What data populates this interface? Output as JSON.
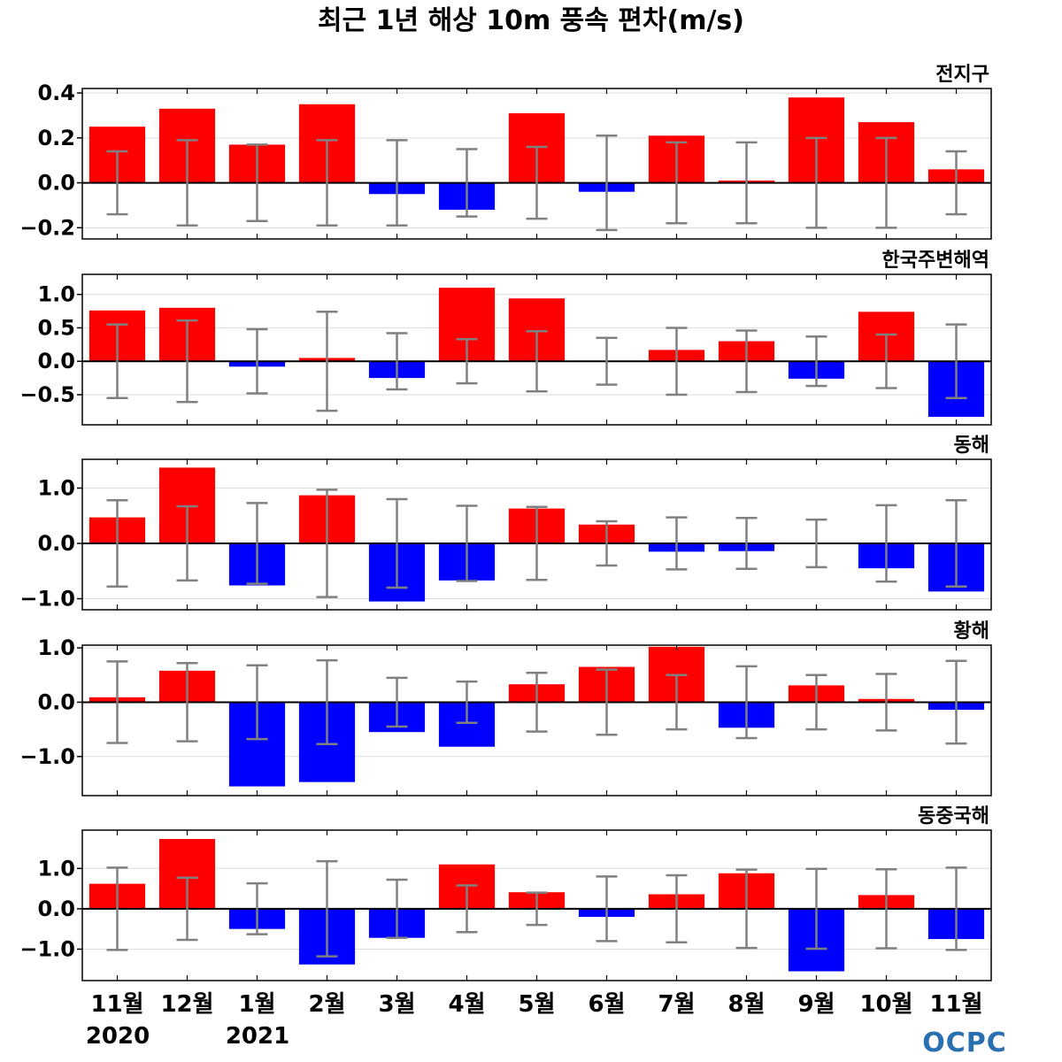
{
  "title": "최근 1년 해상 10m 풍속 편차(m/s)",
  "logo": "OCPC",
  "years": [
    "2020",
    "2021"
  ],
  "colors": {
    "positive": "#ff0000",
    "negative": "#0000ff",
    "errorbar": "#808080",
    "zero_line": "#000000",
    "grid": "#dddddd"
  },
  "chart_data": [
    {
      "type": "bar",
      "region": "전지구",
      "categories": [
        "11월",
        "12월",
        "1월",
        "2월",
        "3월",
        "4월",
        "5월",
        "6월",
        "7월",
        "8월",
        "9월",
        "10월",
        "11월"
      ],
      "values": [
        0.25,
        0.33,
        0.17,
        0.35,
        -0.05,
        -0.12,
        0.31,
        -0.04,
        0.21,
        0.01,
        0.38,
        0.27,
        0.06
      ],
      "error": [
        0.14,
        0.19,
        0.17,
        0.19,
        0.19,
        0.15,
        0.16,
        0.21,
        0.18,
        0.18,
        0.2,
        0.2,
        0.14
      ],
      "ylim": [
        -0.25,
        0.42
      ],
      "yticks": [
        -0.2,
        0.0,
        0.2,
        0.4
      ],
      "ytick_labels": [
        "−0.2",
        "0.0",
        "0.2",
        "0.4"
      ],
      "grid": true
    },
    {
      "type": "bar",
      "region": "한국주변해역",
      "categories": [
        "11월",
        "12월",
        "1월",
        "2월",
        "3월",
        "4월",
        "5월",
        "6월",
        "7월",
        "8월",
        "9월",
        "10월",
        "11월"
      ],
      "values": [
        0.76,
        0.8,
        -0.08,
        0.05,
        -0.25,
        1.1,
        0.94,
        0.0,
        0.17,
        0.3,
        -0.26,
        0.74,
        -0.83
      ],
      "error": [
        0.55,
        0.61,
        0.48,
        0.74,
        0.42,
        0.33,
        0.45,
        0.35,
        0.5,
        0.46,
        0.37,
        0.4,
        0.55
      ],
      "ylim": [
        -0.95,
        1.3
      ],
      "yticks": [
        -0.5,
        0.0,
        0.5,
        1.0
      ],
      "ytick_labels": [
        "−0.5",
        "0.0",
        "0.5",
        "1.0"
      ],
      "grid": true
    },
    {
      "type": "bar",
      "region": "동해",
      "categories": [
        "11월",
        "12월",
        "1월",
        "2월",
        "3월",
        "4월",
        "5월",
        "6월",
        "7월",
        "8월",
        "9월",
        "10월",
        "11월"
      ],
      "values": [
        0.47,
        1.37,
        -0.76,
        0.87,
        -1.05,
        -0.67,
        0.63,
        0.34,
        -0.15,
        -0.14,
        0.01,
        -0.45,
        -0.87
      ],
      "error": [
        0.78,
        0.67,
        0.73,
        0.97,
        0.8,
        0.68,
        0.66,
        0.4,
        0.47,
        0.46,
        0.43,
        0.69,
        0.78
      ],
      "ylim": [
        -1.2,
        1.52
      ],
      "yticks": [
        -1.0,
        0.0,
        1.0
      ],
      "ytick_labels": [
        "−1.0",
        "0.0",
        "1.0"
      ],
      "grid": true
    },
    {
      "type": "bar",
      "region": "황해",
      "categories": [
        "11월",
        "12월",
        "1월",
        "2월",
        "3월",
        "4월",
        "5월",
        "6월",
        "7월",
        "8월",
        "9월",
        "10월",
        "11월"
      ],
      "values": [
        0.09,
        0.58,
        -1.55,
        -1.47,
        -0.55,
        -0.82,
        0.33,
        0.65,
        1.02,
        -0.47,
        0.31,
        0.06,
        -0.14
      ],
      "error": [
        0.75,
        0.72,
        0.68,
        0.77,
        0.45,
        0.38,
        0.54,
        0.6,
        0.5,
        0.66,
        0.5,
        0.52,
        0.76
      ],
      "ylim": [
        -1.72,
        1.05
      ],
      "yticks": [
        -1.0,
        0.0,
        1.0
      ],
      "ytick_labels": [
        "−1.0",
        "0.0",
        "1.0"
      ],
      "grid": true
    },
    {
      "type": "bar",
      "region": "동중국해",
      "categories": [
        "11월",
        "12월",
        "1월",
        "2월",
        "3월",
        "4월",
        "5월",
        "6월",
        "7월",
        "8월",
        "9월",
        "10월",
        "11월"
      ],
      "values": [
        0.62,
        1.73,
        -0.5,
        -1.38,
        -0.72,
        1.1,
        0.41,
        -0.2,
        0.36,
        0.88,
        -1.55,
        0.34,
        -0.75
      ],
      "error": [
        1.02,
        0.77,
        0.63,
        1.18,
        0.72,
        0.58,
        0.4,
        0.8,
        0.83,
        0.97,
        0.99,
        0.98,
        1.02
      ],
      "ylim": [
        -1.78,
        1.95
      ],
      "yticks": [
        -1.0,
        0.0,
        1.0
      ],
      "ytick_labels": [
        "−1.0",
        "0.0",
        "1.0"
      ],
      "grid": true
    }
  ]
}
